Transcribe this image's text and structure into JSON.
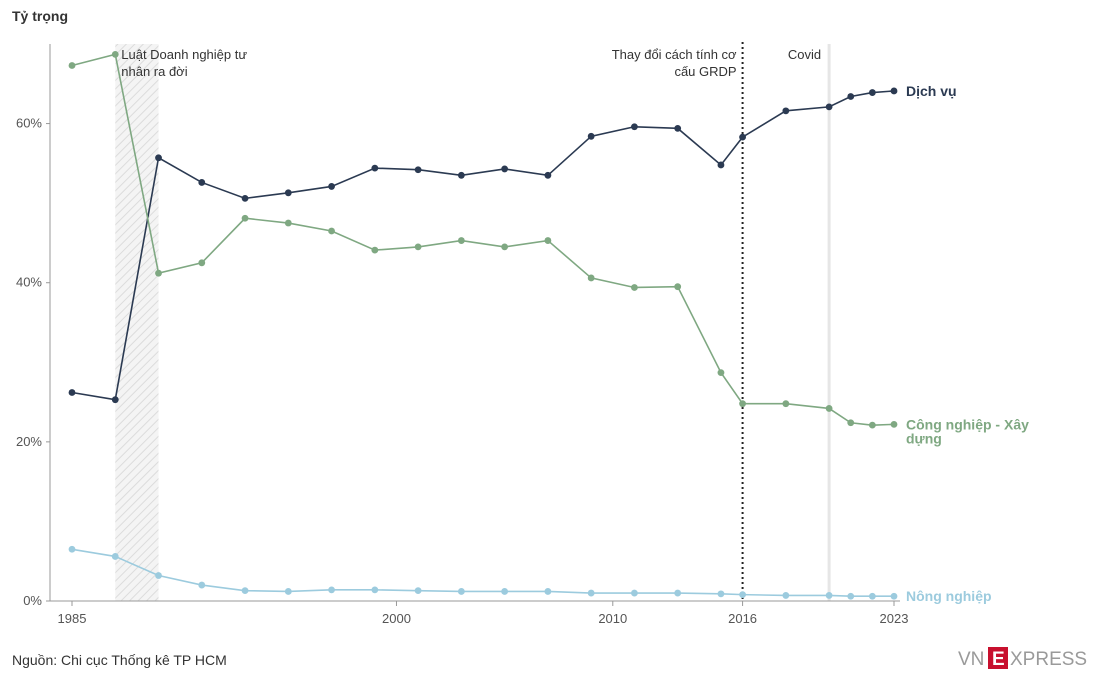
{
  "y_title": "Tỷ trọng",
  "source": "Nguồn: Chi cục Thống kê TP HCM",
  "brand": {
    "vn": "VN",
    "e": "E",
    "xpress": "XPRESS",
    "red": "#c8102e",
    "grey": "#9a9a9a"
  },
  "chart_data": {
    "type": "line",
    "title": "",
    "xlabel": "",
    "ylabel": "Tỷ trọng",
    "xlim": [
      1985,
      2023
    ],
    "ylim": [
      0,
      70
    ],
    "x_ticks": [
      1985,
      2000,
      2010,
      2016,
      2023
    ],
    "y_ticks": [
      0,
      20,
      40,
      60
    ],
    "y_tick_labels": [
      "0%",
      "20%",
      "40%",
      "60%"
    ],
    "grid": false,
    "x": [
      1985,
      1990,
      1995,
      2000,
      2002,
      2004,
      2006,
      2008,
      2010,
      2011,
      2012,
      2013,
      2014,
      2015,
      2016,
      2017,
      2018,
      2019,
      2020,
      2021,
      2022,
      2023
    ],
    "x_years": [
      1985,
      1987,
      1988,
      1990,
      1992,
      1994,
      1996,
      1998,
      2000,
      2002,
      2004,
      2006,
      2008,
      2010,
      2012,
      2014,
      2016,
      2018,
      2020,
      2022,
      2023,
      2024
    ],
    "series": [
      {
        "name": "Dịch vụ",
        "color": "#2b3a52",
        "x": [
          1985,
          1987,
          1989,
          1991,
          1993,
          1995,
          1997,
          1999,
          2001,
          2003,
          2005,
          2007,
          2009,
          2011,
          2013,
          2015,
          2016,
          2018,
          2020,
          2021,
          2022,
          2023
        ],
        "values": [
          26.2,
          25.3,
          55.7,
          52.6,
          50.6,
          51.3,
          52.1,
          54.4,
          54.2,
          53.5,
          54.3,
          53.5,
          58.4,
          59.6,
          59.4,
          54.8,
          58.3,
          61.6,
          62.1,
          63.4,
          63.9,
          64.1
        ]
      },
      {
        "name": "Công nghiệp - Xây dựng",
        "color": "#7fa882",
        "x": [
          1985,
          1987,
          1989,
          1991,
          1993,
          1995,
          1997,
          1999,
          2001,
          2003,
          2005,
          2007,
          2009,
          2011,
          2013,
          2015,
          2016,
          2018,
          2020,
          2021,
          2022,
          2023
        ],
        "values": [
          67.3,
          68.7,
          41.2,
          42.5,
          48.1,
          47.5,
          46.5,
          44.1,
          44.5,
          45.3,
          44.5,
          45.3,
          40.6,
          39.4,
          39.5,
          28.7,
          24.8,
          24.8,
          24.2,
          22.4,
          22.1,
          22.2
        ]
      },
      {
        "name": "Nông nghiệp",
        "color": "#9ccbde",
        "x": [
          1985,
          1987,
          1989,
          1991,
          1993,
          1995,
          1997,
          1999,
          2001,
          2003,
          2005,
          2007,
          2009,
          2011,
          2013,
          2015,
          2016,
          2018,
          2020,
          2021,
          2022,
          2023
        ],
        "values": [
          6.5,
          5.6,
          3.2,
          2.0,
          1.3,
          1.2,
          1.4,
          1.4,
          1.3,
          1.2,
          1.2,
          1.2,
          1.0,
          1.0,
          1.0,
          0.9,
          0.8,
          0.7,
          0.7,
          0.6,
          0.6,
          0.6
        ]
      }
    ],
    "annotations": [
      {
        "text_lines": [
          "Luật Doanh nghiệp tư",
          "nhân ra đời"
        ],
        "kind": "shaded-band",
        "x_start": 1987,
        "x_end": 1989
      },
      {
        "text_lines": [
          "Thay đổi cách tính cơ",
          "cấu GRDP"
        ],
        "kind": "dotted-line",
        "x": 2016
      },
      {
        "text_lines": [
          "Covid"
        ],
        "kind": "light-line",
        "x": 2020
      }
    ],
    "series_labels": [
      {
        "lines": [
          "Dịch vụ"
        ]
      },
      {
        "lines": [
          "Công nghiệp - Xây",
          "dựng"
        ]
      },
      {
        "lines": [
          "Nông nghiệp"
        ]
      }
    ]
  }
}
